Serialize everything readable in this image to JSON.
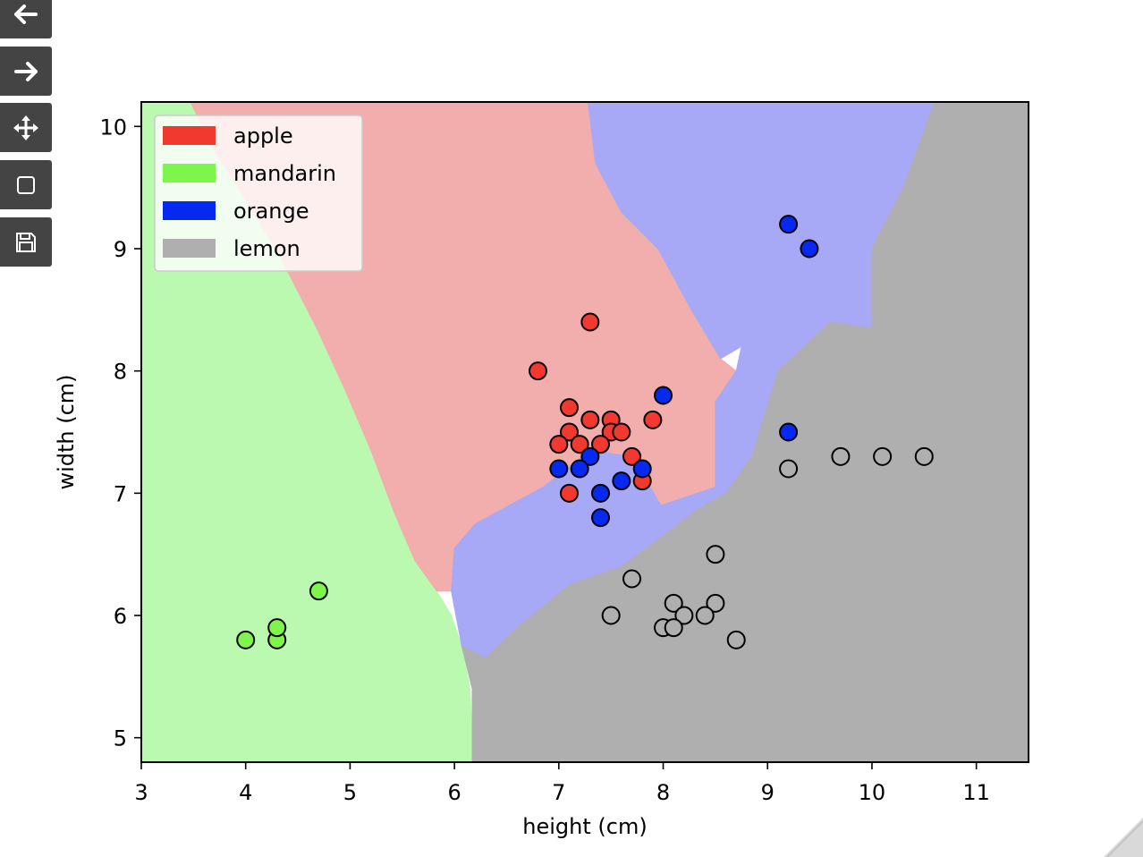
{
  "toolbar": {
    "buttons": [
      {
        "name": "back-button",
        "icon": "arrow-left-icon"
      },
      {
        "name": "forward-button",
        "icon": "arrow-right-icon"
      },
      {
        "name": "pan-button",
        "icon": "move-icon"
      },
      {
        "name": "zoom-button",
        "icon": "rectangle-zoom-icon"
      },
      {
        "name": "save-button",
        "icon": "floppy-disk-icon"
      }
    ]
  },
  "chart_data": {
    "type": "scatter",
    "title": "",
    "xlabel": "height (cm)",
    "ylabel": "width (cm)",
    "xlim": [
      3,
      11.5
    ],
    "ylim": [
      4.8,
      10.2
    ],
    "xticks": [
      3,
      4,
      5,
      6,
      7,
      8,
      9,
      10,
      11
    ],
    "yticks": [
      5,
      6,
      7,
      8,
      9,
      10
    ],
    "grid": false,
    "legend_position": "top-left",
    "decision_regions": [
      {
        "class": "mandarin",
        "color": "#bbf9b1",
        "polygon": [
          [
            3,
            10.2
          ],
          [
            3.47,
            10.2
          ],
          [
            3.7,
            9.8
          ],
          [
            4.0,
            9.4
          ],
          [
            4.35,
            8.9
          ],
          [
            4.68,
            8.35
          ],
          [
            4.95,
            7.85
          ],
          [
            5.2,
            7.35
          ],
          [
            5.42,
            6.85
          ],
          [
            5.62,
            6.45
          ],
          [
            5.83,
            6.2
          ],
          [
            5.97,
            6.0
          ],
          [
            6.07,
            5.75
          ],
          [
            6.15,
            5.4
          ],
          [
            6.17,
            5.0
          ],
          [
            6.17,
            4.8
          ],
          [
            3,
            4.8
          ]
        ]
      },
      {
        "class": "apple",
        "color": "#f2aeac",
        "polygon": [
          [
            3.47,
            10.2
          ],
          [
            7.28,
            10.2
          ],
          [
            7.35,
            9.7
          ],
          [
            7.6,
            9.3
          ],
          [
            7.95,
            9.0
          ],
          [
            8.27,
            8.5
          ],
          [
            8.55,
            8.1
          ],
          [
            8.7,
            8.0
          ],
          [
            8.5,
            7.75
          ],
          [
            8.5,
            7.2
          ],
          [
            8.5,
            7.05
          ],
          [
            7.98,
            6.9
          ],
          [
            7.7,
            7.3
          ],
          [
            7.3,
            7.35
          ],
          [
            6.85,
            7.05
          ],
          [
            6.2,
            6.75
          ],
          [
            6.0,
            6.55
          ],
          [
            5.97,
            6.2
          ],
          [
            5.83,
            6.2
          ],
          [
            5.62,
            6.45
          ],
          [
            5.42,
            6.85
          ],
          [
            5.2,
            7.35
          ],
          [
            4.95,
            7.85
          ],
          [
            4.68,
            8.35
          ],
          [
            4.35,
            8.9
          ],
          [
            4.0,
            9.4
          ],
          [
            3.7,
            9.8
          ]
        ]
      },
      {
        "class": "orange",
        "color": "#a8a9f6",
        "polygon": [
          [
            7.28,
            10.2
          ],
          [
            9.6,
            10.2
          ],
          [
            9.1,
            9.4
          ],
          [
            8.95,
            8.5
          ],
          [
            8.75,
            8.2
          ],
          [
            8.55,
            8.1
          ],
          [
            8.27,
            8.5
          ],
          [
            7.95,
            9.0
          ],
          [
            7.6,
            9.3
          ],
          [
            7.35,
            9.7
          ]
        ]
      },
      {
        "class": "orange",
        "color": "#a8a9f6",
        "polygon": [
          [
            8.7,
            8.0
          ],
          [
            8.5,
            7.75
          ],
          [
            8.5,
            7.2
          ],
          [
            8.5,
            7.05
          ],
          [
            7.98,
            6.9
          ],
          [
            7.7,
            7.3
          ],
          [
            7.3,
            7.35
          ],
          [
            6.85,
            7.05
          ],
          [
            6.2,
            6.75
          ],
          [
            6.0,
            6.55
          ],
          [
            5.97,
            6.2
          ],
          [
            6.07,
            5.75
          ],
          [
            6.3,
            5.65
          ],
          [
            6.6,
            5.9
          ],
          [
            7.1,
            6.25
          ],
          [
            7.6,
            6.4
          ],
          [
            8.0,
            6.65
          ],
          [
            8.3,
            6.85
          ],
          [
            8.6,
            7.0
          ],
          [
            8.85,
            7.3
          ],
          [
            9.1,
            8.0
          ],
          [
            9.6,
            8.4
          ],
          [
            10.0,
            8.35
          ],
          [
            10.3,
            9.5
          ],
          [
            10.6,
            10.2
          ],
          [
            9.6,
            10.2
          ],
          [
            9.1,
            9.4
          ],
          [
            8.95,
            8.5
          ],
          [
            8.75,
            8.2
          ]
        ]
      },
      {
        "class": "lemon",
        "color": "#afafaf",
        "polygon": [
          [
            9.6,
            10.2
          ],
          [
            11.5,
            10.2
          ],
          [
            11.5,
            4.8
          ],
          [
            6.17,
            4.8
          ],
          [
            6.17,
            5.4
          ],
          [
            6.07,
            5.75
          ],
          [
            6.3,
            5.65
          ],
          [
            6.6,
            5.9
          ],
          [
            7.1,
            6.25
          ],
          [
            7.6,
            6.4
          ],
          [
            8.0,
            6.65
          ],
          [
            8.3,
            6.85
          ],
          [
            8.6,
            7.0
          ],
          [
            8.85,
            7.3
          ],
          [
            9.1,
            8.0
          ],
          [
            9.6,
            8.4
          ],
          [
            10.0,
            8.35
          ],
          [
            10.0,
            9.0
          ],
          [
            10.3,
            9.5
          ],
          [
            10.6,
            10.2
          ]
        ]
      }
    ],
    "series": [
      {
        "name": "apple",
        "color": "#f1392f",
        "points": [
          [
            6.8,
            8.0
          ],
          [
            7.3,
            8.4
          ],
          [
            7.1,
            7.7
          ],
          [
            7.3,
            7.6
          ],
          [
            7.5,
            7.6
          ],
          [
            7.1,
            7.5
          ],
          [
            7.5,
            7.5
          ],
          [
            7.6,
            7.5
          ],
          [
            7.9,
            7.6
          ],
          [
            7.0,
            7.4
          ],
          [
            7.2,
            7.4
          ],
          [
            7.4,
            7.4
          ],
          [
            7.7,
            7.3
          ],
          [
            7.1,
            7.0
          ],
          [
            7.8,
            7.1
          ]
        ]
      },
      {
        "name": "mandarin",
        "color": "#7ef54b",
        "points": [
          [
            4.0,
            5.8
          ],
          [
            4.3,
            5.8
          ],
          [
            4.3,
            5.9
          ],
          [
            4.7,
            6.2
          ]
        ]
      },
      {
        "name": "orange",
        "color": "#0629f2",
        "points": [
          [
            9.2,
            9.2
          ],
          [
            9.4,
            9.0
          ],
          [
            8.0,
            7.8
          ],
          [
            9.2,
            7.5
          ],
          [
            7.3,
            7.3
          ],
          [
            7.0,
            7.2
          ],
          [
            7.2,
            7.2
          ],
          [
            7.8,
            7.2
          ],
          [
            7.6,
            7.1
          ],
          [
            7.4,
            7.0
          ],
          [
            7.4,
            6.8
          ]
        ]
      },
      {
        "name": "lemon",
        "color": "#afafaf",
        "points": [
          [
            9.2,
            7.2
          ],
          [
            9.7,
            7.3
          ],
          [
            10.1,
            7.3
          ],
          [
            10.5,
            7.3
          ],
          [
            8.5,
            6.5
          ],
          [
            7.7,
            6.3
          ],
          [
            8.1,
            6.1
          ],
          [
            8.5,
            6.1
          ],
          [
            7.5,
            6.0
          ],
          [
            8.2,
            6.0
          ],
          [
            8.4,
            6.0
          ],
          [
            8.0,
            5.9
          ],
          [
            8.1,
            5.9
          ],
          [
            8.7,
            5.8
          ]
        ]
      }
    ],
    "legend": [
      {
        "label": "apple",
        "color": "#f1392f"
      },
      {
        "label": "mandarin",
        "color": "#7ef54b"
      },
      {
        "label": "orange",
        "color": "#0629f2"
      },
      {
        "label": "lemon",
        "color": "#afafaf"
      }
    ]
  }
}
